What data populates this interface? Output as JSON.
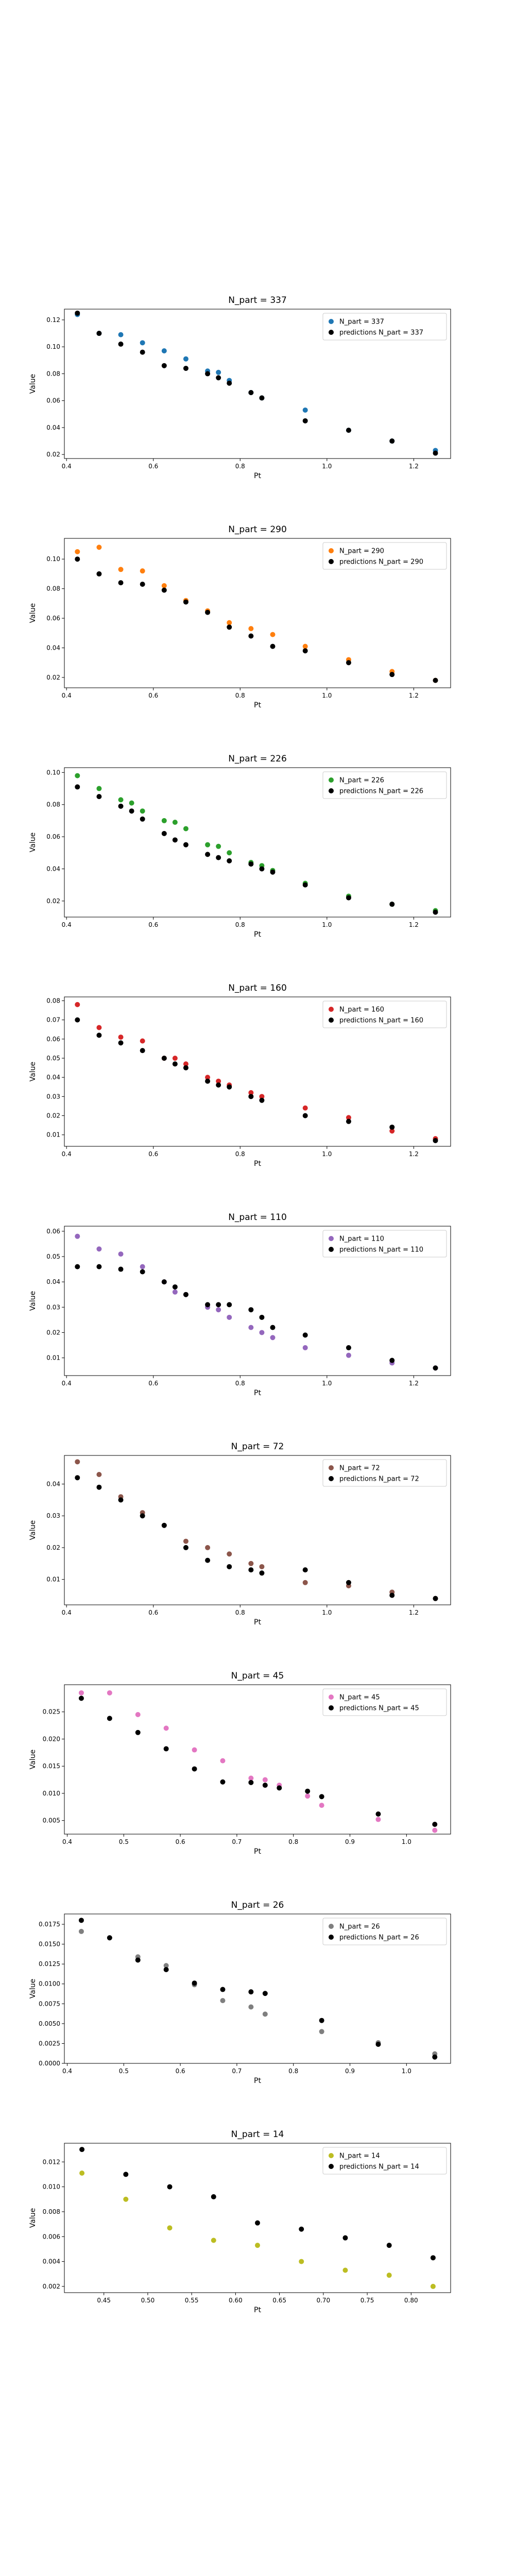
{
  "chart_data": [
    {
      "type": "scatter",
      "title": "N_part = 337",
      "xlabel": "Pt",
      "ylabel": "Value",
      "xlim": [
        0.395,
        1.285
      ],
      "ylim": [
        0.017,
        0.128
      ],
      "xticks": [
        "0.4",
        "0.6",
        "0.8",
        "1.0",
        "1.2"
      ],
      "xtick_values": [
        0.4,
        0.6,
        0.8,
        1.0,
        1.2
      ],
      "yticks": [
        "0.02",
        "0.04",
        "0.06",
        "0.08",
        "0.10",
        "0.12"
      ],
      "ytick_values": [
        0.02,
        0.04,
        0.06,
        0.08,
        0.1,
        0.12
      ],
      "legend_position": "upper right",
      "series": [
        {
          "name": "N_part = 337",
          "color": "#1f77b4",
          "x": [
            0.425,
            0.475,
            0.525,
            0.575,
            0.625,
            0.675,
            0.725,
            0.75,
            0.775,
            0.825,
            0.85,
            0.95,
            1.05,
            1.15,
            1.25
          ],
          "y": [
            0.124,
            0.11,
            0.109,
            0.103,
            0.097,
            0.091,
            0.082,
            0.081,
            0.075,
            0.066,
            0.062,
            0.053,
            0.038,
            0.03,
            0.023
          ]
        },
        {
          "name": "predictions N_part = 337",
          "color": "#000000",
          "x": [
            0.425,
            0.475,
            0.525,
            0.575,
            0.625,
            0.675,
            0.725,
            0.75,
            0.775,
            0.825,
            0.85,
            0.95,
            1.05,
            1.15,
            1.25
          ],
          "y": [
            0.125,
            0.11,
            0.102,
            0.096,
            0.086,
            0.084,
            0.08,
            0.077,
            0.073,
            0.066,
            0.062,
            0.045,
            0.038,
            0.03,
            0.021
          ]
        }
      ]
    },
    {
      "type": "scatter",
      "title": "N_part = 290",
      "xlabel": "Pt",
      "ylabel": "Value",
      "xlim": [
        0.395,
        1.285
      ],
      "ylim": [
        0.013,
        0.114
      ],
      "xticks": [
        "0.4",
        "0.6",
        "0.8",
        "1.0",
        "1.2"
      ],
      "xtick_values": [
        0.4,
        0.6,
        0.8,
        1.0,
        1.2
      ],
      "yticks": [
        "0.02",
        "0.04",
        "0.06",
        "0.08",
        "0.10"
      ],
      "ytick_values": [
        0.02,
        0.04,
        0.06,
        0.08,
        0.1
      ],
      "legend_position": "upper right",
      "series": [
        {
          "name": "N_part = 290",
          "color": "#ff7f0e",
          "x": [
            0.425,
            0.475,
            0.525,
            0.575,
            0.625,
            0.675,
            0.725,
            0.775,
            0.825,
            0.875,
            0.95,
            1.05,
            1.15,
            1.25
          ],
          "y": [
            0.105,
            0.108,
            0.093,
            0.092,
            0.082,
            0.072,
            0.065,
            0.057,
            0.053,
            0.049,
            0.041,
            0.032,
            0.024,
            0.018
          ]
        },
        {
          "name": "predictions N_part = 290",
          "color": "#000000",
          "x": [
            0.425,
            0.475,
            0.525,
            0.575,
            0.625,
            0.675,
            0.725,
            0.775,
            0.825,
            0.875,
            0.95,
            1.05,
            1.15,
            1.25
          ],
          "y": [
            0.1,
            0.09,
            0.084,
            0.083,
            0.079,
            0.071,
            0.064,
            0.054,
            0.048,
            0.041,
            0.038,
            0.03,
            0.022,
            0.018
          ]
        }
      ]
    },
    {
      "type": "scatter",
      "title": "N_part = 226",
      "xlabel": "Pt",
      "ylabel": "Value",
      "xlim": [
        0.395,
        1.285
      ],
      "ylim": [
        0.01,
        0.103
      ],
      "xticks": [
        "0.4",
        "0.6",
        "0.8",
        "1.0",
        "1.2"
      ],
      "xtick_values": [
        0.4,
        0.6,
        0.8,
        1.0,
        1.2
      ],
      "yticks": [
        "0.02",
        "0.04",
        "0.06",
        "0.08",
        "0.10"
      ],
      "ytick_values": [
        0.02,
        0.04,
        0.06,
        0.08,
        0.1
      ],
      "legend_position": "upper right",
      "series": [
        {
          "name": "N_part = 226",
          "color": "#2ca02c",
          "x": [
            0.425,
            0.475,
            0.525,
            0.55,
            0.575,
            0.625,
            0.65,
            0.675,
            0.725,
            0.75,
            0.775,
            0.825,
            0.85,
            0.875,
            0.95,
            1.05,
            1.15,
            1.25
          ],
          "y": [
            0.098,
            0.09,
            0.083,
            0.081,
            0.076,
            0.07,
            0.069,
            0.065,
            0.055,
            0.054,
            0.05,
            0.044,
            0.042,
            0.039,
            0.031,
            0.023,
            0.018,
            0.014
          ]
        },
        {
          "name": "predictions N_part = 226",
          "color": "#000000",
          "x": [
            0.425,
            0.475,
            0.525,
            0.55,
            0.575,
            0.625,
            0.65,
            0.675,
            0.725,
            0.75,
            0.775,
            0.825,
            0.85,
            0.875,
            0.95,
            1.05,
            1.15,
            1.25
          ],
          "y": [
            0.091,
            0.085,
            0.079,
            0.076,
            0.071,
            0.062,
            0.058,
            0.055,
            0.049,
            0.047,
            0.045,
            0.043,
            0.04,
            0.038,
            0.03,
            0.022,
            0.018,
            0.013
          ]
        }
      ]
    },
    {
      "type": "scatter",
      "title": "N_part = 160",
      "xlabel": "Pt",
      "ylabel": "Value",
      "xlim": [
        0.395,
        1.285
      ],
      "ylim": [
        0.004,
        0.082
      ],
      "xticks": [
        "0.4",
        "0.6",
        "0.8",
        "1.0",
        "1.2"
      ],
      "xtick_values": [
        0.4,
        0.6,
        0.8,
        1.0,
        1.2
      ],
      "yticks": [
        "0.01",
        "0.02",
        "0.03",
        "0.04",
        "0.05",
        "0.06",
        "0.07",
        "0.08"
      ],
      "ytick_values": [
        0.01,
        0.02,
        0.03,
        0.04,
        0.05,
        0.06,
        0.07,
        0.08
      ],
      "legend_position": "upper right",
      "series": [
        {
          "name": "N_part = 160",
          "color": "#d62728",
          "x": [
            0.425,
            0.475,
            0.525,
            0.575,
            0.625,
            0.65,
            0.675,
            0.725,
            0.75,
            0.775,
            0.825,
            0.85,
            0.95,
            1.05,
            1.15,
            1.25
          ],
          "y": [
            0.078,
            0.066,
            0.061,
            0.059,
            0.05,
            0.05,
            0.047,
            0.04,
            0.038,
            0.036,
            0.032,
            0.03,
            0.024,
            0.019,
            0.012,
            0.008
          ]
        },
        {
          "name": "predictions N_part = 160",
          "color": "#000000",
          "x": [
            0.425,
            0.475,
            0.525,
            0.575,
            0.625,
            0.65,
            0.675,
            0.725,
            0.75,
            0.775,
            0.825,
            0.85,
            0.95,
            1.05,
            1.15,
            1.25
          ],
          "y": [
            0.07,
            0.062,
            0.058,
            0.054,
            0.05,
            0.047,
            0.045,
            0.038,
            0.036,
            0.035,
            0.03,
            0.028,
            0.02,
            0.017,
            0.014,
            0.007
          ]
        }
      ]
    },
    {
      "type": "scatter",
      "title": "N_part = 110",
      "xlabel": "Pt",
      "ylabel": "Value",
      "xlim": [
        0.395,
        1.285
      ],
      "ylim": [
        0.003,
        0.062
      ],
      "xticks": [
        "0.4",
        "0.6",
        "0.8",
        "1.0",
        "1.2"
      ],
      "xtick_values": [
        0.4,
        0.6,
        0.8,
        1.0,
        1.2
      ],
      "yticks": [
        "0.01",
        "0.02",
        "0.03",
        "0.04",
        "0.05",
        "0.06"
      ],
      "ytick_values": [
        0.01,
        0.02,
        0.03,
        0.04,
        0.05,
        0.06
      ],
      "legend_position": "upper right",
      "series": [
        {
          "name": "N_part = 110",
          "color": "#9467bd",
          "x": [
            0.425,
            0.475,
            0.525,
            0.575,
            0.625,
            0.65,
            0.675,
            0.725,
            0.75,
            0.775,
            0.825,
            0.85,
            0.875,
            0.95,
            1.05,
            1.15,
            1.25
          ],
          "y": [
            0.058,
            0.053,
            0.051,
            0.046,
            0.04,
            0.036,
            0.035,
            0.03,
            0.029,
            0.026,
            0.022,
            0.02,
            0.018,
            0.014,
            0.011,
            0.008,
            0.006
          ]
        },
        {
          "name": "predictions N_part = 110",
          "color": "#000000",
          "x": [
            0.425,
            0.475,
            0.525,
            0.575,
            0.625,
            0.65,
            0.675,
            0.725,
            0.75,
            0.775,
            0.825,
            0.85,
            0.875,
            0.95,
            1.05,
            1.15,
            1.25
          ],
          "y": [
            0.046,
            0.046,
            0.045,
            0.044,
            0.04,
            0.038,
            0.035,
            0.031,
            0.031,
            0.031,
            0.029,
            0.026,
            0.022,
            0.019,
            0.014,
            0.009,
            0.006
          ]
        }
      ]
    },
    {
      "type": "scatter",
      "title": "N_part = 72",
      "xlabel": "Pt",
      "ylabel": "Value",
      "xlim": [
        0.395,
        1.285
      ],
      "ylim": [
        0.002,
        0.049
      ],
      "xticks": [
        "0.4",
        "0.6",
        "0.8",
        "1.0",
        "1.2"
      ],
      "xtick_values": [
        0.4,
        0.6,
        0.8,
        1.0,
        1.2
      ],
      "yticks": [
        "0.01",
        "0.02",
        "0.03",
        "0.04"
      ],
      "ytick_values": [
        0.01,
        0.02,
        0.03,
        0.04
      ],
      "legend_position": "upper right",
      "series": [
        {
          "name": "N_part = 72",
          "color": "#8c564b",
          "x": [
            0.425,
            0.475,
            0.525,
            0.575,
            0.625,
            0.675,
            0.725,
            0.775,
            0.825,
            0.85,
            0.95,
            1.05,
            1.15,
            1.25
          ],
          "y": [
            0.047,
            0.043,
            0.036,
            0.031,
            0.027,
            0.022,
            0.02,
            0.018,
            0.015,
            0.014,
            0.009,
            0.008,
            0.006,
            0.004
          ]
        },
        {
          "name": "predictions N_part = 72",
          "color": "#000000",
          "x": [
            0.425,
            0.475,
            0.525,
            0.575,
            0.625,
            0.675,
            0.725,
            0.775,
            0.825,
            0.85,
            0.95,
            1.05,
            1.15,
            1.25
          ],
          "y": [
            0.042,
            0.039,
            0.035,
            0.03,
            0.027,
            0.02,
            0.016,
            0.014,
            0.013,
            0.012,
            0.013,
            0.009,
            0.005,
            0.004
          ]
        }
      ]
    },
    {
      "type": "scatter",
      "title": "N_part = 45",
      "xlabel": "Pt",
      "ylabel": "Value",
      "xlim": [
        0.395,
        1.078
      ],
      "ylim": [
        0.0025,
        0.03
      ],
      "xticks": [
        "0.4",
        "0.5",
        "0.6",
        "0.7",
        "0.8",
        "0.9",
        "1.0"
      ],
      "xtick_values": [
        0.4,
        0.5,
        0.6,
        0.7,
        0.8,
        0.9,
        1.0
      ],
      "yticks": [
        "0.005",
        "0.010",
        "0.015",
        "0.020",
        "0.025"
      ],
      "ytick_values": [
        0.005,
        0.01,
        0.015,
        0.02,
        0.025
      ],
      "legend_position": "upper right",
      "series": [
        {
          "name": "N_part = 45",
          "color": "#e377c2",
          "x": [
            0.425,
            0.475,
            0.525,
            0.575,
            0.625,
            0.675,
            0.725,
            0.75,
            0.775,
            0.825,
            0.85,
            0.95,
            1.05
          ],
          "y": [
            0.0285,
            0.0285,
            0.0245,
            0.022,
            0.018,
            0.016,
            0.0128,
            0.0125,
            0.0115,
            0.0095,
            0.0078,
            0.0052,
            0.0032
          ]
        },
        {
          "name": "predictions N_part = 45",
          "color": "#000000",
          "x": [
            0.425,
            0.475,
            0.525,
            0.575,
            0.625,
            0.675,
            0.725,
            0.75,
            0.775,
            0.825,
            0.85,
            0.95,
            1.05
          ],
          "y": [
            0.0275,
            0.0238,
            0.0212,
            0.0182,
            0.0145,
            0.0121,
            0.012,
            0.0115,
            0.011,
            0.0104,
            0.0094,
            0.0062,
            0.0043
          ]
        }
      ]
    },
    {
      "type": "scatter",
      "title": "N_part = 26",
      "xlabel": "Pt",
      "ylabel": "Value",
      "xlim": [
        0.395,
        1.078
      ],
      "ylim": [
        0.0,
        0.0188
      ],
      "xticks": [
        "0.4",
        "0.5",
        "0.6",
        "0.7",
        "0.8",
        "0.9",
        "1.0"
      ],
      "xtick_values": [
        0.4,
        0.5,
        0.6,
        0.7,
        0.8,
        0.9,
        1.0
      ],
      "yticks": [
        "0.0000",
        "0.0025",
        "0.0050",
        "0.0075",
        "0.0100",
        "0.0125",
        "0.0150",
        "0.0175"
      ],
      "ytick_values": [
        0.0,
        0.0025,
        0.005,
        0.0075,
        0.01,
        0.0125,
        0.015,
        0.0175
      ],
      "legend_position": "upper right",
      "series": [
        {
          "name": "N_part = 26",
          "color": "#7f7f7f",
          "x": [
            0.425,
            0.475,
            0.525,
            0.575,
            0.625,
            0.675,
            0.725,
            0.75,
            0.85,
            0.95,
            1.05
          ],
          "y": [
            0.0166,
            0.0158,
            0.0134,
            0.0123,
            0.0099,
            0.0079,
            0.0071,
            0.0062,
            0.004,
            0.0026,
            0.0012
          ]
        },
        {
          "name": "predictions N_part = 26",
          "color": "#000000",
          "x": [
            0.425,
            0.475,
            0.525,
            0.575,
            0.625,
            0.675,
            0.725,
            0.75,
            0.85,
            0.95,
            1.05
          ],
          "y": [
            0.018,
            0.0158,
            0.013,
            0.0118,
            0.0101,
            0.0093,
            0.009,
            0.0088,
            0.0054,
            0.0024,
            0.0008
          ]
        }
      ]
    },
    {
      "type": "scatter",
      "title": "N_part = 14",
      "xlabel": "Pt",
      "ylabel": "Value",
      "xlim": [
        0.405,
        0.845
      ],
      "ylim": [
        0.0015,
        0.0135
      ],
      "xticks": [
        "0.45",
        "0.50",
        "0.55",
        "0.60",
        "0.65",
        "0.70",
        "0.75",
        "0.80"
      ],
      "xtick_values": [
        0.45,
        0.5,
        0.55,
        0.6,
        0.65,
        0.7,
        0.75,
        0.8
      ],
      "yticks": [
        "0.002",
        "0.004",
        "0.006",
        "0.008",
        "0.010",
        "0.012"
      ],
      "ytick_values": [
        0.002,
        0.004,
        0.006,
        0.008,
        0.01,
        0.012
      ],
      "legend_position": "upper right",
      "series": [
        {
          "name": "N_part = 14",
          "color": "#bcbd22",
          "x": [
            0.425,
            0.475,
            0.525,
            0.575,
            0.625,
            0.675,
            0.725,
            0.775,
            0.825
          ],
          "y": [
            0.0111,
            0.009,
            0.0067,
            0.0057,
            0.0053,
            0.004,
            0.0033,
            0.0029,
            0.002
          ]
        },
        {
          "name": "predictions N_part = 14",
          "color": "#000000",
          "x": [
            0.425,
            0.475,
            0.525,
            0.575,
            0.625,
            0.675,
            0.725,
            0.775,
            0.825
          ],
          "y": [
            0.013,
            0.011,
            0.01,
            0.0092,
            0.0071,
            0.0066,
            0.0059,
            0.0053,
            0.0043
          ]
        }
      ]
    }
  ]
}
